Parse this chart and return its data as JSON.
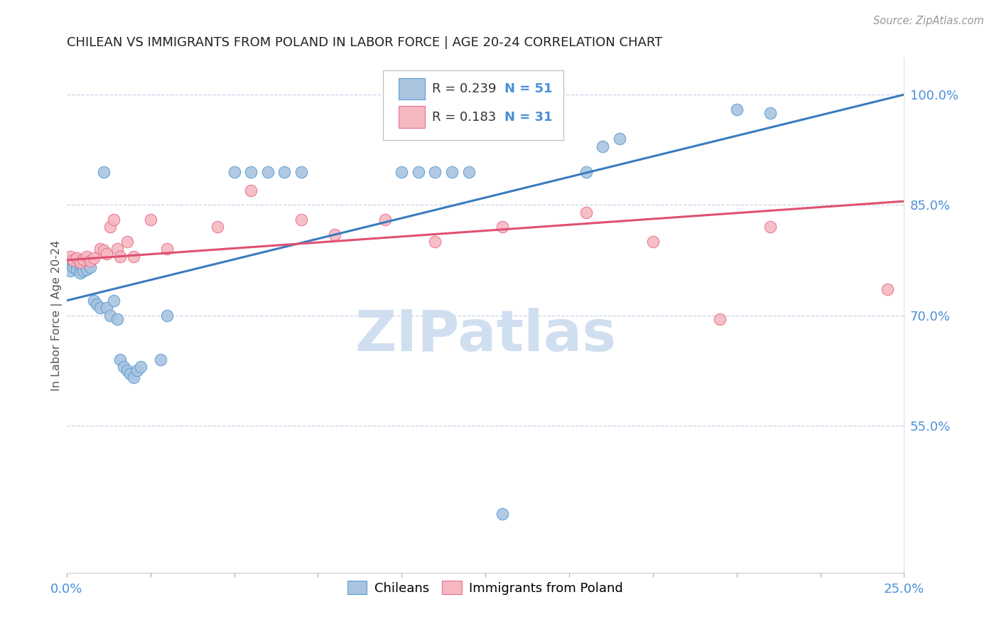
{
  "title": "CHILEAN VS IMMIGRANTS FROM POLAND IN LABOR FORCE | AGE 20-24 CORRELATION CHART",
  "source": "Source: ZipAtlas.com",
  "ylabel": "In Labor Force | Age 20-24",
  "xlim": [
    0.0,
    0.25
  ],
  "ylim": [
    0.35,
    1.05
  ],
  "xticks": [
    0.0,
    0.025,
    0.05,
    0.075,
    0.1,
    0.125,
    0.15,
    0.175,
    0.2,
    0.225,
    0.25
  ],
  "xticklabels_show": [
    "0.0%",
    "25.0%"
  ],
  "yticks_right": [
    0.55,
    0.7,
    0.85,
    1.0
  ],
  "ytick_right_labels": [
    "55.0%",
    "70.0%",
    "85.0%",
    "100.0%"
  ],
  "chilean_color": "#aac4e0",
  "poland_color": "#f5b8c0",
  "chilean_edge": "#5a9fd4",
  "poland_edge": "#e87090",
  "trendline_blue": "#3a7cbf",
  "trendline_pink": "#e05070",
  "watermark_color": "#d0dff0",
  "blue_trend_x0": 0.0,
  "blue_trend_x1": 0.25,
  "blue_trend_y0": 0.72,
  "blue_trend_y1": 1.0,
  "pink_trend_x0": 0.0,
  "pink_trend_x1": 0.25,
  "pink_trend_y0": 0.775,
  "pink_trend_y1": 0.855,
  "chilean_x": [
    0.001,
    0.001,
    0.001,
    0.002,
    0.002,
    0.002,
    0.003,
    0.003,
    0.003,
    0.004,
    0.004,
    0.004,
    0.005,
    0.005,
    0.005,
    0.006,
    0.006,
    0.007,
    0.008,
    0.009,
    0.01,
    0.011,
    0.012,
    0.013,
    0.014,
    0.015,
    0.016,
    0.017,
    0.018,
    0.019,
    0.02,
    0.021,
    0.022,
    0.028,
    0.03,
    0.05,
    0.055,
    0.06,
    0.065,
    0.07,
    0.1,
    0.105,
    0.11,
    0.115,
    0.12,
    0.155,
    0.16,
    0.165,
    0.2,
    0.21,
    0.13
  ],
  "chilean_y": [
    0.775,
    0.77,
    0.76,
    0.775,
    0.77,
    0.765,
    0.775,
    0.768,
    0.762,
    0.772,
    0.765,
    0.758,
    0.773,
    0.768,
    0.76,
    0.77,
    0.762,
    0.765,
    0.72,
    0.715,
    0.71,
    0.895,
    0.71,
    0.7,
    0.72,
    0.695,
    0.64,
    0.63,
    0.625,
    0.62,
    0.615,
    0.625,
    0.63,
    0.64,
    0.7,
    0.895,
    0.895,
    0.895,
    0.895,
    0.895,
    0.895,
    0.895,
    0.895,
    0.895,
    0.895,
    0.895,
    0.93,
    0.94,
    0.98,
    0.975,
    0.43
  ],
  "poland_x": [
    0.001,
    0.002,
    0.003,
    0.004,
    0.005,
    0.006,
    0.007,
    0.008,
    0.01,
    0.011,
    0.012,
    0.013,
    0.014,
    0.015,
    0.016,
    0.018,
    0.02,
    0.025,
    0.03,
    0.045,
    0.055,
    0.07,
    0.08,
    0.095,
    0.11,
    0.13,
    0.155,
    0.175,
    0.195,
    0.21,
    0.245
  ],
  "poland_y": [
    0.78,
    0.775,
    0.778,
    0.772,
    0.776,
    0.78,
    0.774,
    0.778,
    0.79,
    0.788,
    0.784,
    0.82,
    0.83,
    0.79,
    0.78,
    0.8,
    0.78,
    0.83,
    0.79,
    0.82,
    0.87,
    0.83,
    0.81,
    0.83,
    0.8,
    0.82,
    0.84,
    0.8,
    0.695,
    0.82,
    0.735
  ],
  "legend_r_blue": "R = 0.239",
  "legend_n_blue": "N = 51",
  "legend_r_pink": "R = 0.183",
  "legend_n_pink": "N = 31"
}
